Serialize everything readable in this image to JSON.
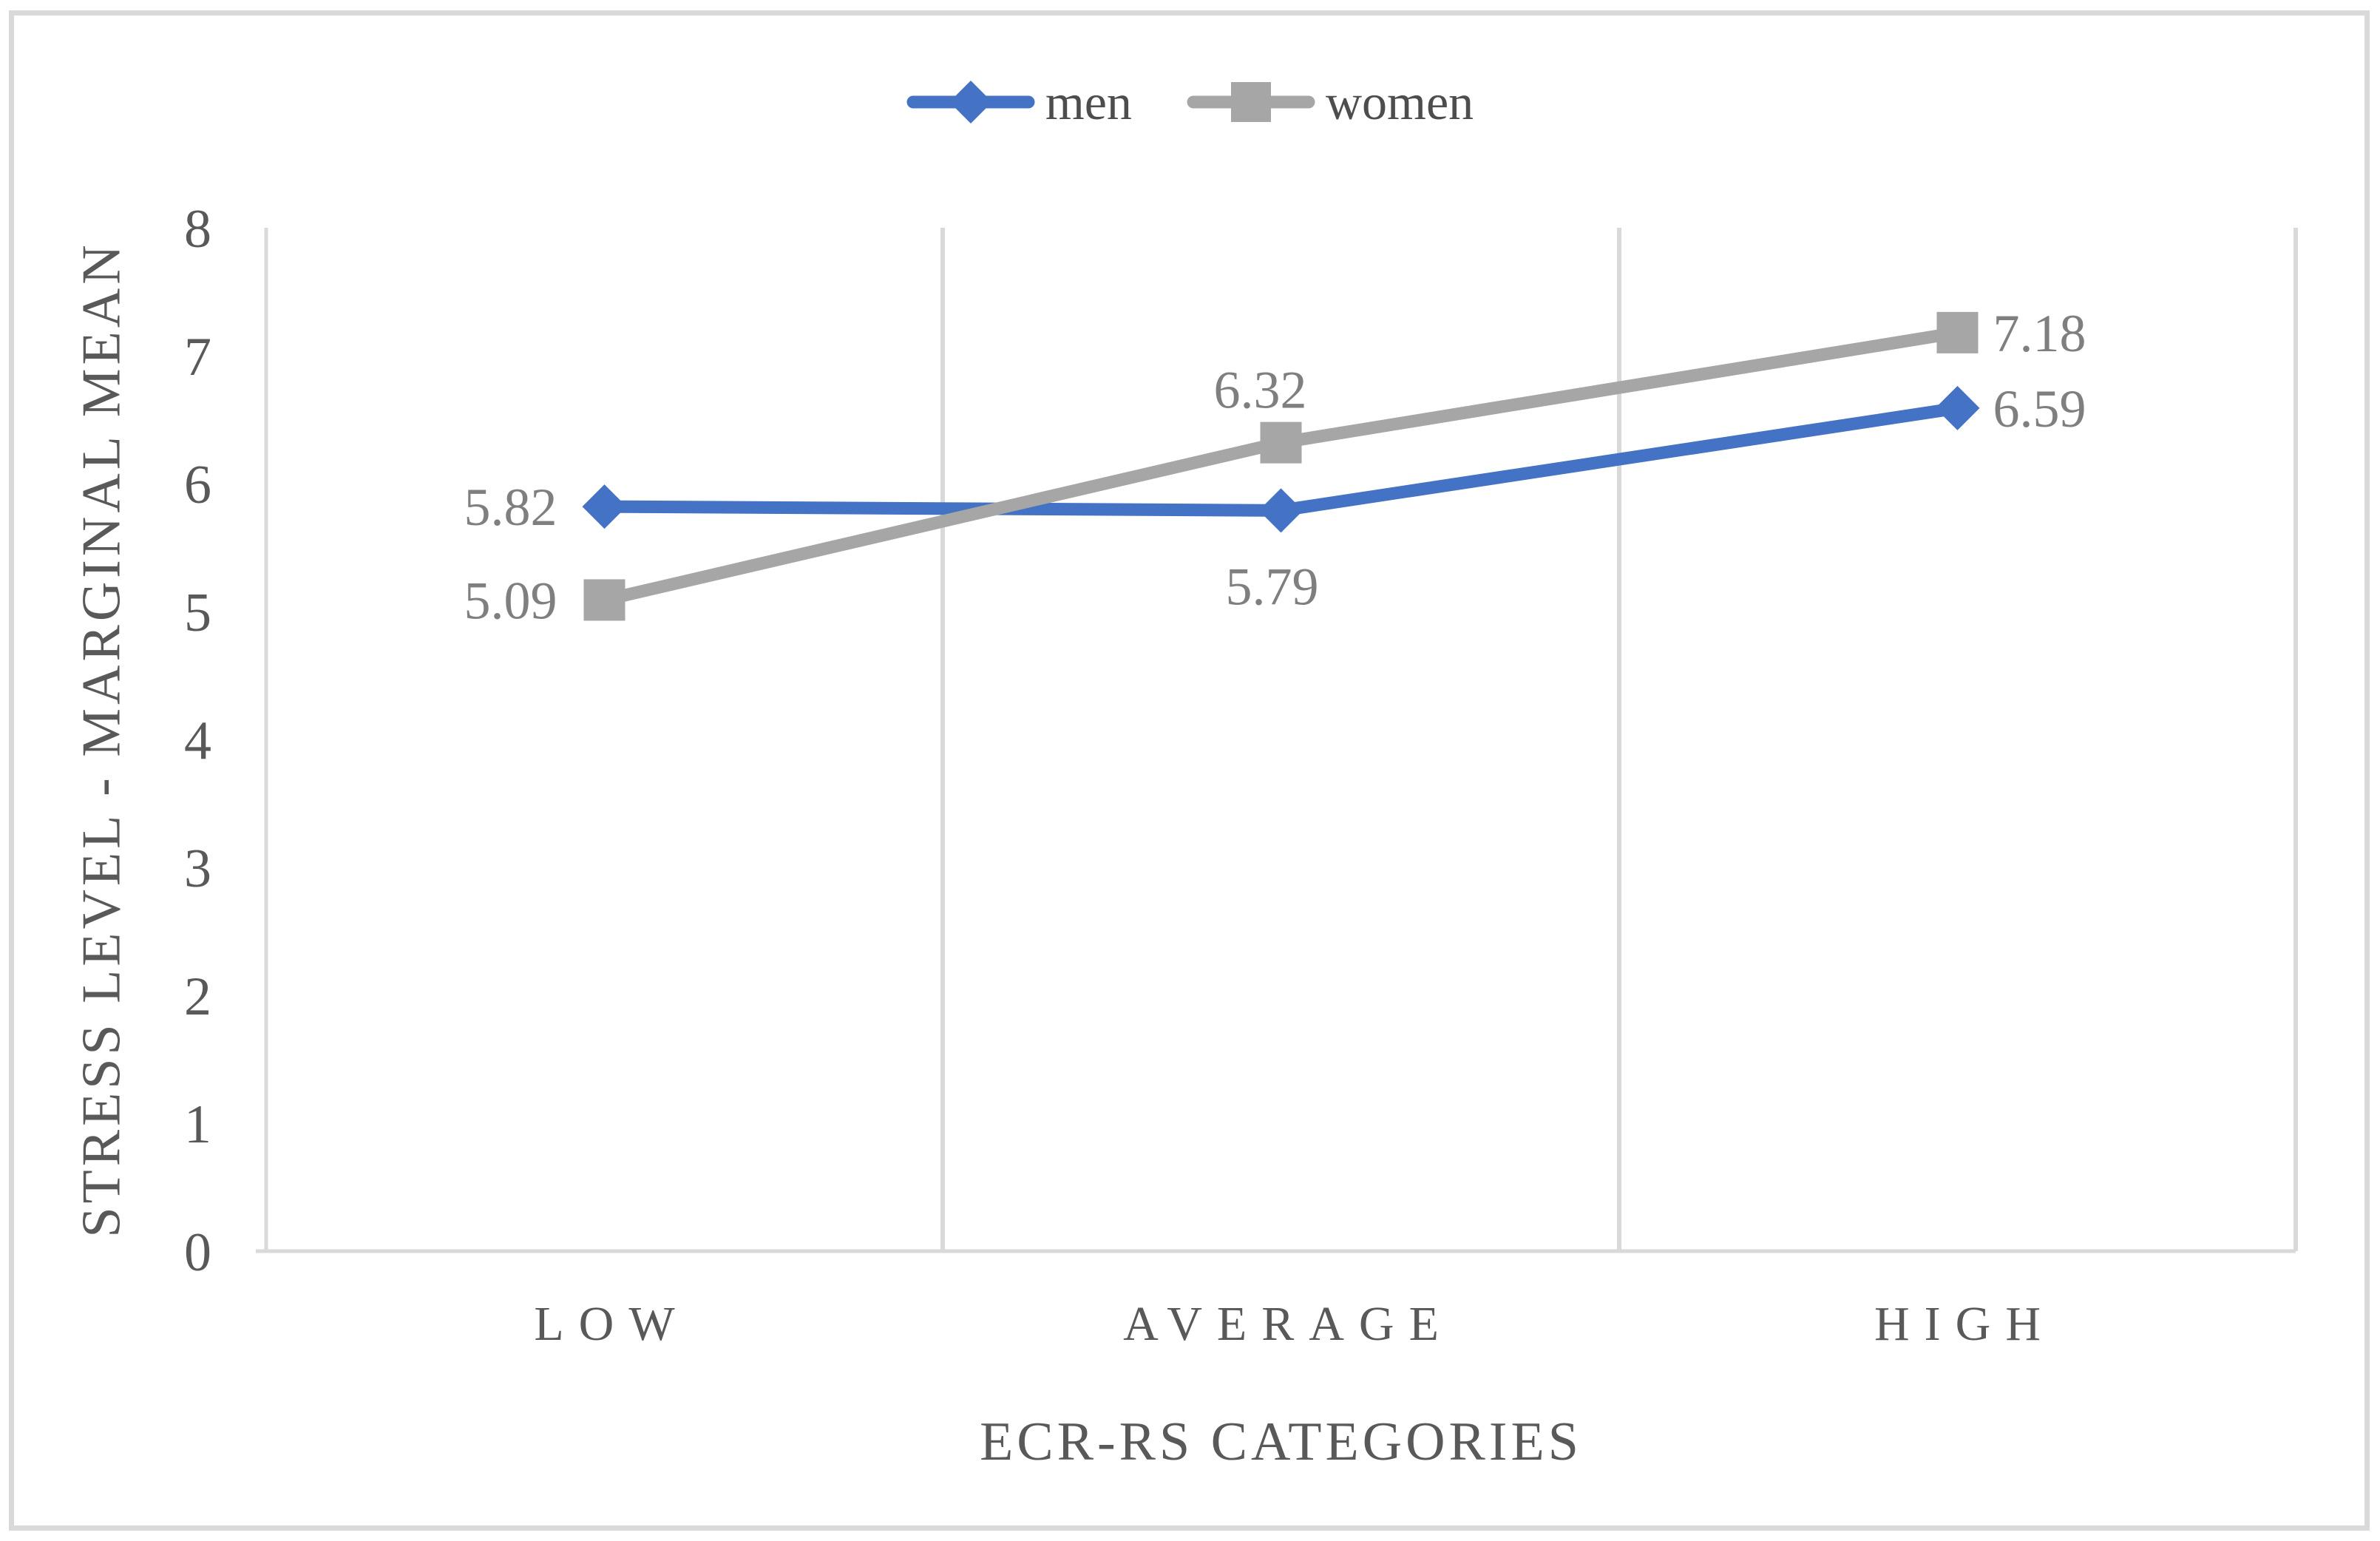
{
  "figure": {
    "background": "#ffffff",
    "border_color": "#d9d9d9"
  },
  "legend": {
    "position": "top-center",
    "items": [
      {
        "label": "men",
        "marker": "diamond-icon",
        "color": "#4472c4"
      },
      {
        "label": "women",
        "marker": "square-icon",
        "color": "#a6a6a6"
      }
    ]
  },
  "chart_data": {
    "type": "line",
    "title": "",
    "categories": [
      "LOW",
      "AVERAGE",
      "HIGH"
    ],
    "series": [
      {
        "name": "men",
        "color": "#4472c4",
        "marker": "diamond",
        "values": [
          5.82,
          5.79,
          6.59
        ],
        "labels": [
          "5.82",
          "5.79",
          "6.59"
        ],
        "label_positions": [
          "left",
          "below",
          "right"
        ]
      },
      {
        "name": "women",
        "color": "#a6a6a6",
        "marker": "square",
        "values": [
          5.09,
          6.32,
          7.18
        ],
        "labels": [
          "5.09",
          "6.32",
          "7.18"
        ],
        "label_positions": [
          "left",
          "above",
          "right"
        ]
      }
    ],
    "xlabel": "ECR-RS CATEGORIES",
    "ylabel": "STRESS LEVEL - MARGINAL MEAN",
    "ylim": [
      0,
      8
    ],
    "yticks": [
      "0",
      "1",
      "2",
      "3",
      "4",
      "5",
      "6",
      "7",
      "8"
    ],
    "grid": "vertical-only",
    "legend_position": "top-center",
    "colors": {
      "axis_line": "#d9d9d9",
      "gridline": "#d9d9d9",
      "tick_label": "#595959",
      "category_label": "#595959",
      "data_label": "#7f7f7f",
      "legend_text": "#4d4d4d"
    }
  }
}
